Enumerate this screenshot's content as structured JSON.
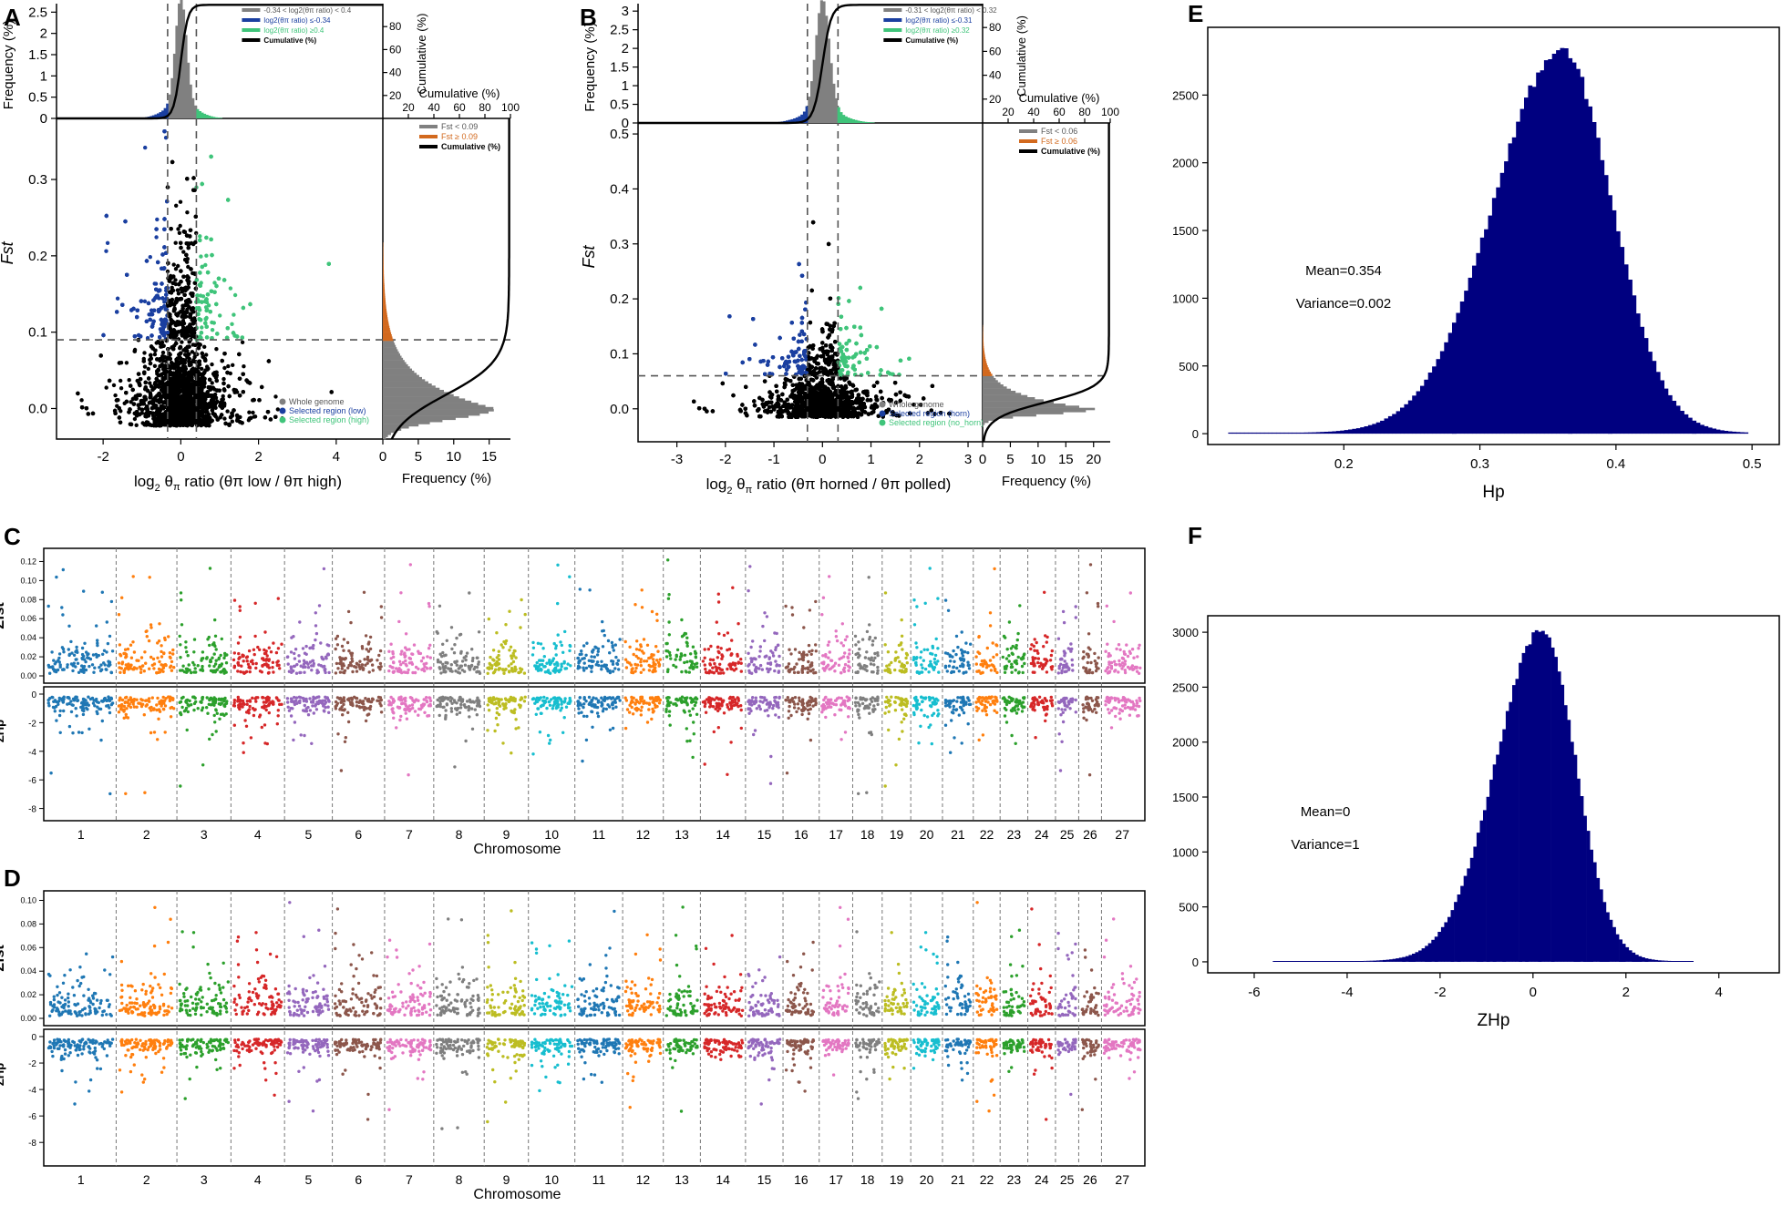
{
  "figure": {
    "panel_labels": [
      "A",
      "B",
      "C",
      "D",
      "E",
      "F"
    ]
  },
  "chart_data": [
    {
      "panel": "A",
      "type": "scatter",
      "xlabel_prefix": "log",
      "xlabel_sub": "2",
      "xlabel_mid": " θ",
      "xlabel_pi": "π",
      "xlabel_ratio": " ratio",
      "xlabel_paren": "(θπ low / θπ high)",
      "ylabel": "Fst",
      "xlim": [
        -3.2,
        5.2
      ],
      "ylim": [
        -0.04,
        0.38
      ],
      "xticks": [
        "-2",
        "0",
        "2",
        "4"
      ],
      "xtick_values": [
        -2,
        0,
        2,
        4
      ],
      "yticks": [
        "0.0",
        "0.1",
        "0.2",
        "0.3"
      ],
      "ytick_values": [
        0,
        0.1,
        0.2,
        0.3
      ],
      "thresholds": {
        "log_low": -0.34,
        "log_high": 0.4,
        "fst": 0.09
      },
      "top_hist": {
        "ylabel": "Frequency (%)",
        "y2label": "Cumulative (%)",
        "yticks": [
          "0",
          "0.5",
          "1",
          "1.5",
          "2",
          "2.5"
        ],
        "ymax": 2.7,
        "y2ticks": [
          "20",
          "40",
          "60",
          "80"
        ],
        "legend": [
          {
            "label": "-0.34 < log2(θπ ratio) < 0.4",
            "color": "#808080"
          },
          {
            "label": "log2(θπ ratio) ≤-0.34",
            "color": "#1a3fa0"
          },
          {
            "label": "log2(θπ ratio) ≥0.4",
            "color": "#3fc47a"
          },
          {
            "label": "Cumulative (%)",
            "color": "#000000"
          }
        ]
      },
      "right_hist": {
        "xlabel": "Frequency (%)",
        "xticks": [
          "0",
          "5",
          "10",
          "15"
        ],
        "xmax": 18,
        "x2label": "Cumulative (%)",
        "x2ticks": [
          "20",
          "40",
          "60",
          "80",
          "100"
        ],
        "legend": [
          {
            "label": "Fst < 0.09",
            "color": "#808080"
          },
          {
            "label": "Fst ≥ 0.09",
            "color": "#d2691e"
          },
          {
            "label": "Cumulative (%)",
            "color": "#000000"
          }
        ]
      },
      "scatter_legend": [
        {
          "label": "Whole genome",
          "color": "#808080"
        },
        {
          "label": "Selected region (low)",
          "color": "#1a3fa0"
        },
        {
          "label": "Selected region (high)",
          "color": "#3fc47a"
        }
      ]
    },
    {
      "panel": "B",
      "type": "scatter",
      "xlabel_prefix": "log",
      "xlabel_sub": "2",
      "xlabel_mid": " θ",
      "xlabel_pi": "π",
      "xlabel_ratio": " ratio",
      "xlabel_paren": "(θπ horned / θπ polled)",
      "ylabel": "Fst",
      "xlim": [
        -3.8,
        3.3
      ],
      "ylim": [
        -0.06,
        0.52
      ],
      "xticks": [
        "-3",
        "-2",
        "-1",
        "0",
        "1",
        "2",
        "3"
      ],
      "xtick_values": [
        -3,
        -2,
        -1,
        0,
        1,
        2,
        3
      ],
      "yticks": [
        "0.0",
        "0.1",
        "0.2",
        "0.3",
        "0.4",
        "0.5"
      ],
      "ytick_values": [
        0,
        0.1,
        0.2,
        0.3,
        0.4,
        0.5
      ],
      "thresholds": {
        "log_low": -0.31,
        "log_high": 0.32,
        "fst": 0.06
      },
      "top_hist": {
        "ylabel": "Frequency (%)",
        "y2label": "Cumulative (%)",
        "yticks": [
          "0",
          "0.5",
          "1",
          "1.5",
          "2",
          "2.5",
          "3"
        ],
        "ymax": 3.2,
        "y2ticks": [
          "20",
          "40",
          "60",
          "80"
        ],
        "legend": [
          {
            "label": "-0.31 < log2(θπ ratio) < 0.32",
            "color": "#808080"
          },
          {
            "label": "log2(θπ ratio) ≤-0.31",
            "color": "#1a3fa0"
          },
          {
            "label": "log2(θπ ratio) ≥0.32",
            "color": "#3fc47a"
          },
          {
            "label": "Cumulative (%)",
            "color": "#000000"
          }
        ]
      },
      "right_hist": {
        "xlabel": "Frequency (%)",
        "xticks": [
          "0",
          "5",
          "10",
          "15",
          "20"
        ],
        "xmax": 23,
        "x2label": "Cumulative (%)",
        "x2ticks": [
          "20",
          "40",
          "60",
          "80",
          "100"
        ],
        "legend": [
          {
            "label": "Fst < 0.06",
            "color": "#808080"
          },
          {
            "label": "Fst ≥ 0.06",
            "color": "#d2691e"
          },
          {
            "label": "Cumulative (%)",
            "color": "#000000"
          }
        ]
      },
      "scatter_legend": [
        {
          "label": "Whole genome",
          "color": "#808080"
        },
        {
          "label": "Selected region (horn)",
          "color": "#1a3fa0"
        },
        {
          "label": "Selected region (no_horn)",
          "color": "#3fc47a"
        }
      ]
    },
    {
      "panel": "C",
      "type": "scatter",
      "title": "",
      "xlabel": "Chromosome",
      "top_ylabel": "Zfst",
      "bottom_ylabel": "ZHp",
      "top_yticks": [
        "0.00",
        "0.02",
        "0.04",
        "0.06",
        "0.08",
        "0.10",
        "0.12"
      ],
      "top_ymax": 0.13,
      "bottom_yticks": [
        "0",
        "-2",
        "-4",
        "-6",
        "-8"
      ],
      "bottom_ymin": -8.6,
      "chromosomes": [
        "1",
        "2",
        "3",
        "4",
        "5",
        "6",
        "7",
        "8",
        "9",
        "10",
        "11",
        "12",
        "13",
        "14",
        "15",
        "16",
        "17",
        "18",
        "19",
        "20",
        "21",
        "22",
        "23",
        "24",
        "25",
        "26",
        "27"
      ],
      "chromosome_widths": [
        158,
        136,
        121,
        120,
        107,
        117,
        110,
        113,
        99,
        104,
        107,
        91,
        83,
        101,
        84,
        81,
        75,
        66,
        64,
        71,
        69,
        60,
        62,
        62,
        52,
        51,
        93
      ],
      "colors": [
        "#1f77b4",
        "#ff7f0e",
        "#2ca02c",
        "#d62728",
        "#9467bd",
        "#8c564b",
        "#e377c2",
        "#7f7f7f",
        "#bcbd22",
        "#17becf"
      ]
    },
    {
      "panel": "D",
      "type": "scatter",
      "title": "",
      "xlabel": "Chromosome",
      "top_ylabel": "Zfst",
      "bottom_ylabel": "ZHp",
      "top_yticks": [
        "0.00",
        "0.02",
        "0.04",
        "0.06",
        "0.08",
        "0.10"
      ],
      "top_ymax": 0.105,
      "bottom_yticks": [
        "0",
        "-2",
        "-4",
        "-6",
        "-8"
      ],
      "bottom_ymin": -9.5,
      "chromosomes": [
        "1",
        "2",
        "3",
        "4",
        "5",
        "6",
        "7",
        "8",
        "9",
        "10",
        "11",
        "12",
        "13",
        "14",
        "15",
        "16",
        "17",
        "18",
        "19",
        "20",
        "21",
        "22",
        "23",
        "24",
        "25",
        "26",
        "27"
      ],
      "chromosome_widths": [
        158,
        136,
        121,
        120,
        107,
        117,
        110,
        113,
        99,
        104,
        107,
        91,
        83,
        101,
        84,
        81,
        75,
        66,
        64,
        71,
        69,
        60,
        62,
        62,
        52,
        51,
        93
      ],
      "colors": [
        "#1f77b4",
        "#ff7f0e",
        "#2ca02c",
        "#d62728",
        "#9467bd",
        "#8c564b",
        "#e377c2",
        "#7f7f7f",
        "#bcbd22",
        "#17becf"
      ]
    },
    {
      "panel": "E",
      "type": "bar",
      "title": "",
      "xlabel": "Hp",
      "ylabel": "",
      "xlim": [
        0.1,
        0.52
      ],
      "ylim": [
        -80,
        3000
      ],
      "xticks": [
        "0.2",
        "0.3",
        "0.4",
        "0.5"
      ],
      "xtick_values": [
        0.2,
        0.3,
        0.4,
        0.5
      ],
      "yticks": [
        "0",
        "500",
        "1000",
        "1500",
        "2000",
        "2500"
      ],
      "ytick_values": [
        0,
        500,
        1000,
        1500,
        2000,
        2500
      ],
      "distribution": {
        "mean": 0.36,
        "sd_left": 0.05,
        "sd_right": 0.037,
        "peak": 2790,
        "xmin": 0.115,
        "xmax": 0.497,
        "bins": 130
      },
      "color": "#000080",
      "annotations": [
        "Mean=0.354",
        "Variance=0.002"
      ]
    },
    {
      "panel": "F",
      "type": "bar",
      "title": "",
      "xlabel": "ZHp",
      "ylabel": "",
      "xlim": [
        -7,
        5.3
      ],
      "ylim": [
        -100,
        3150
      ],
      "xticks": [
        "-6",
        "-4",
        "-2",
        "0",
        "2",
        "4"
      ],
      "xtick_values": [
        -6,
        -4,
        -2,
        0,
        2,
        4
      ],
      "yticks": [
        "0",
        "500",
        "1000",
        "1500",
        "2000",
        "2500",
        "3000"
      ],
      "ytick_values": [
        0,
        500,
        1000,
        1500,
        2000,
        2500,
        3000
      ],
      "distribution": {
        "mean": 0.2,
        "sd_left": 1.0,
        "sd_right": 0.72,
        "peak": 2980,
        "xmin": -5.6,
        "xmax": 3.45,
        "bins": 130
      },
      "color": "#000080",
      "annotations": [
        "Mean=0",
        "Variance=1"
      ]
    }
  ]
}
